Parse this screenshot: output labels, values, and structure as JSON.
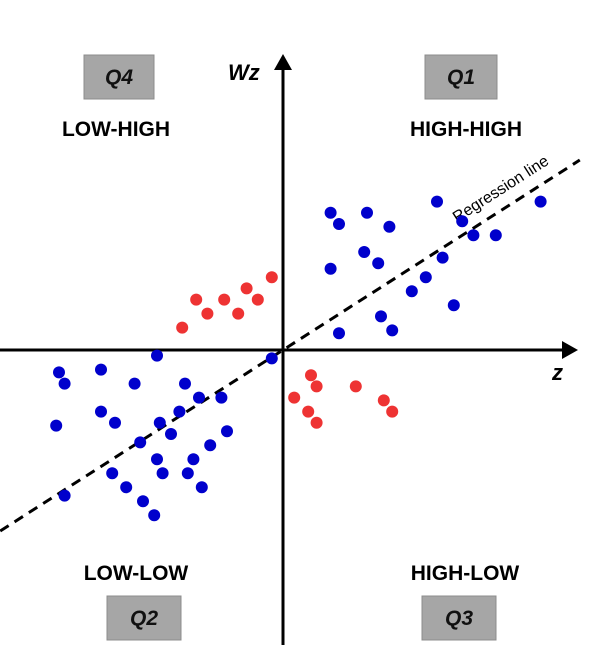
{
  "chart_data": {
    "type": "scatter",
    "title": "",
    "xlabel": "z",
    "ylabel": "Wz",
    "xlim": [
      -10,
      10
    ],
    "ylim": [
      -10,
      10
    ],
    "grid": false,
    "quadrant_boxes": {
      "q1": "Q1",
      "q2": "Q2",
      "q3": "Q3",
      "q4": "Q4"
    },
    "quadrant_labels": {
      "q1": "HIGH-HIGH",
      "q2": "LOW-LOW",
      "q3": "HIGH-LOW",
      "q4": "LOW-HIGH"
    },
    "regression": {
      "label": "Regression line",
      "slope": 0.64,
      "intercept": 0,
      "style": "dashed",
      "color": "#000000"
    },
    "series": [
      {
        "color": "#0000cc",
        "points": [
          [
            1.7,
            4.9
          ],
          [
            2.0,
            4.5
          ],
          [
            3.0,
            4.9
          ],
          [
            3.8,
            4.4
          ],
          [
            5.5,
            5.3
          ],
          [
            6.4,
            4.6
          ],
          [
            6.8,
            4.1
          ],
          [
            7.6,
            4.1
          ],
          [
            9.2,
            5.3
          ],
          [
            1.7,
            2.9
          ],
          [
            2.9,
            3.5
          ],
          [
            3.4,
            3.1
          ],
          [
            4.6,
            2.1
          ],
          [
            5.1,
            2.6
          ],
          [
            5.7,
            3.3
          ],
          [
            6.1,
            1.6
          ],
          [
            2.0,
            0.6
          ],
          [
            3.5,
            1.2
          ],
          [
            3.9,
            0.7
          ],
          [
            -0.4,
            -0.3
          ],
          [
            -4.5,
            -0.2
          ],
          [
            -8.0,
            -0.8
          ],
          [
            -7.8,
            -1.2
          ],
          [
            -6.5,
            -0.7
          ],
          [
            -5.3,
            -1.2
          ],
          [
            -3.5,
            -1.2
          ],
          [
            -3.0,
            -1.7
          ],
          [
            -2.2,
            -1.7
          ],
          [
            -8.1,
            -2.7
          ],
          [
            -6.5,
            -2.2
          ],
          [
            -6.0,
            -2.6
          ],
          [
            -4.4,
            -2.6
          ],
          [
            -3.7,
            -2.2
          ],
          [
            -2.0,
            -2.9
          ],
          [
            -5.1,
            -3.3
          ],
          [
            -4.5,
            -3.9
          ],
          [
            -4.0,
            -3.0
          ],
          [
            -3.2,
            -3.9
          ],
          [
            -2.6,
            -3.4
          ],
          [
            -6.1,
            -4.4
          ],
          [
            -5.6,
            -4.9
          ],
          [
            -4.3,
            -4.4
          ],
          [
            -3.4,
            -4.4
          ],
          [
            -2.9,
            -4.9
          ],
          [
            -7.8,
            -5.2
          ],
          [
            -5.0,
            -5.4
          ],
          [
            -4.6,
            -5.9
          ]
        ]
      },
      {
        "color": "#ee3333",
        "points": [
          [
            -3.6,
            0.8
          ],
          [
            -3.1,
            1.8
          ],
          [
            -2.7,
            1.3
          ],
          [
            -2.1,
            1.8
          ],
          [
            -1.6,
            1.3
          ],
          [
            -1.3,
            2.2
          ],
          [
            -0.9,
            1.8
          ],
          [
            -0.4,
            2.6
          ],
          [
            1.0,
            -0.9
          ],
          [
            1.2,
            -1.3
          ],
          [
            0.4,
            -1.7
          ],
          [
            0.9,
            -2.2
          ],
          [
            1.2,
            -2.6
          ],
          [
            2.6,
            -1.3
          ],
          [
            3.6,
            -1.8
          ],
          [
            3.9,
            -2.2
          ]
        ]
      }
    ]
  }
}
